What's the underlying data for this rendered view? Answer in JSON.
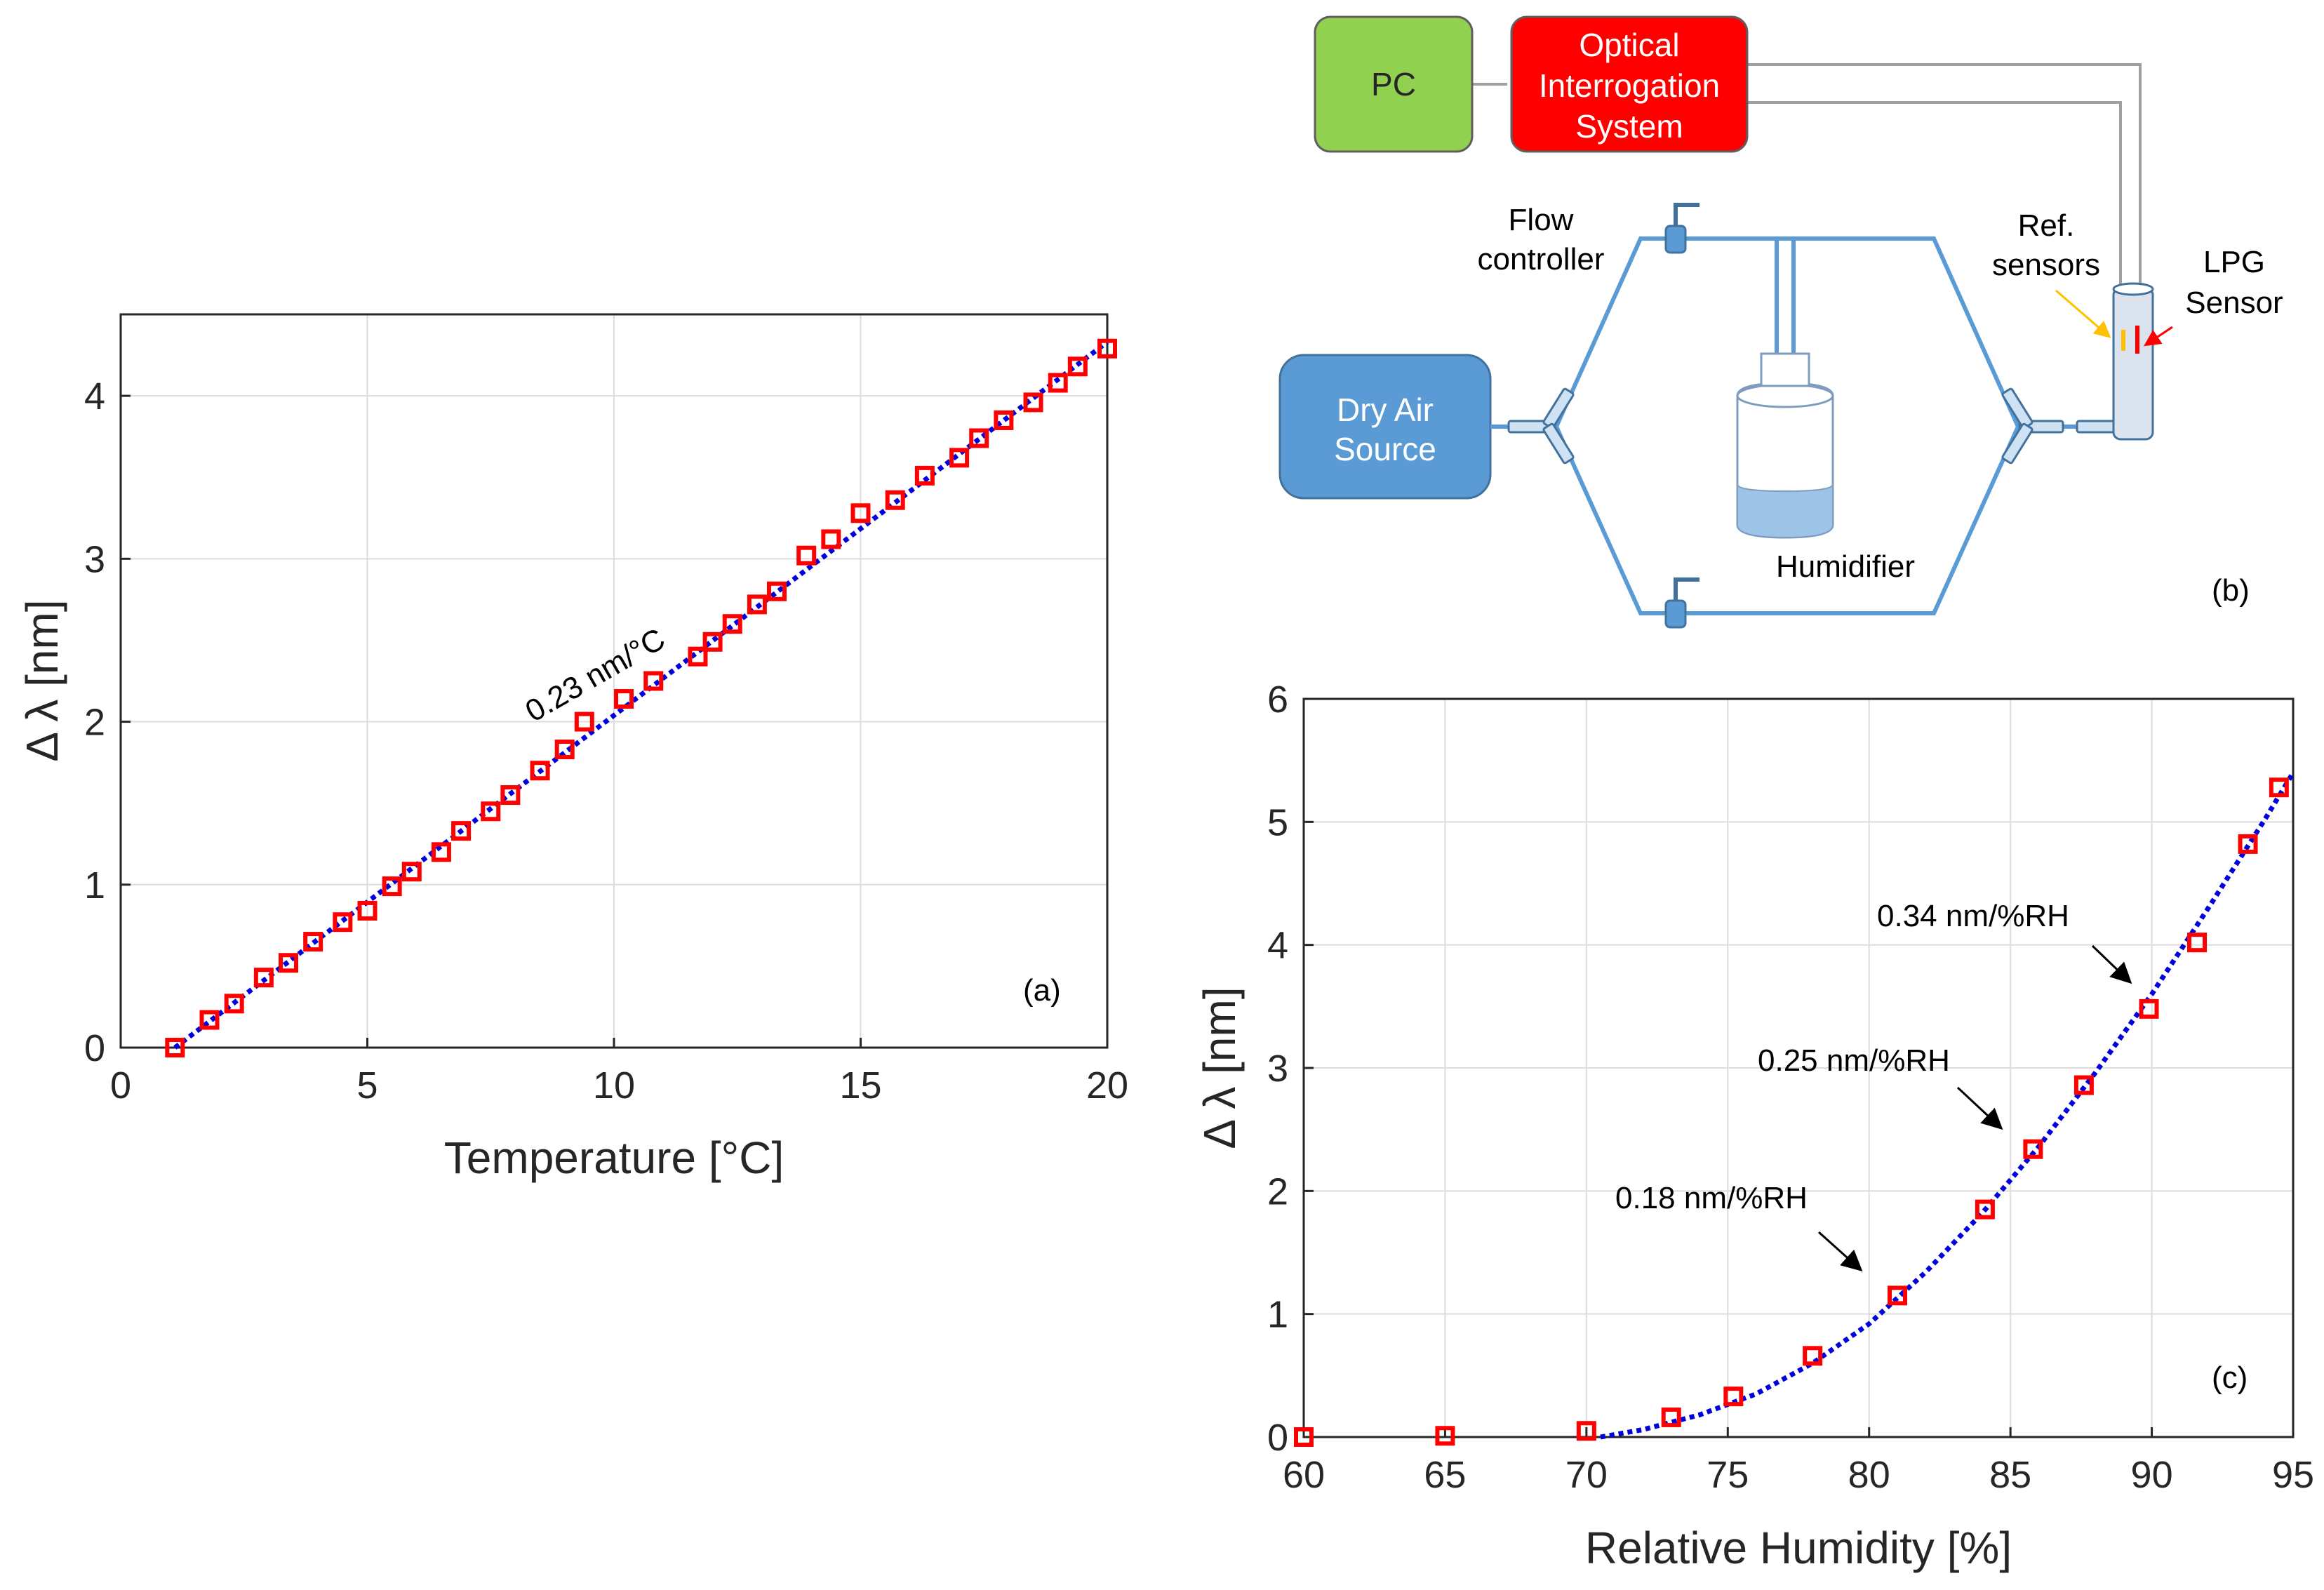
{
  "chart_data": [
    {
      "type": "scatter",
      "panel_label": "(a)",
      "xlabel": "Temperature [°C]",
      "ylabel": "Δ λ [nm]",
      "xlim": [
        0,
        20
      ],
      "ylim": [
        0,
        4.5
      ],
      "xticks": [
        "0",
        "5",
        "10",
        "15",
        "20"
      ],
      "yticks": [
        "0",
        "1",
        "2",
        "3",
        "4"
      ],
      "grid": true,
      "annotation": "0.23 nm/°C",
      "series": [
        {
          "name": "measured",
          "marker": "square",
          "color": "#ff0000",
          "x": [
            1.1,
            1.8,
            2.3,
            2.9,
            3.4,
            3.9,
            4.5,
            5.0,
            5.5,
            5.9,
            6.5,
            6.9,
            7.5,
            7.9,
            8.5,
            9.0,
            9.4,
            10.2,
            10.8,
            11.7,
            12.0,
            12.4,
            12.9,
            13.3,
            13.9,
            14.4,
            15.0,
            15.7,
            16.3,
            17.0,
            17.4,
            17.9,
            18.5,
            19.0,
            19.4,
            20.0
          ],
          "y": [
            0.0,
            0.17,
            0.27,
            0.43,
            0.52,
            0.65,
            0.77,
            0.84,
            0.99,
            1.08,
            1.2,
            1.33,
            1.45,
            1.55,
            1.7,
            1.83,
            2.0,
            2.14,
            2.25,
            2.4,
            2.49,
            2.6,
            2.72,
            2.8,
            3.02,
            3.12,
            3.28,
            3.36,
            3.51,
            3.62,
            3.74,
            3.85,
            3.96,
            4.08,
            4.18,
            4.29
          ]
        },
        {
          "name": "linear fit",
          "style": "dotted",
          "color": "#0000dd",
          "x": [
            1.1,
            20.0
          ],
          "y": [
            0.0,
            4.33
          ]
        }
      ]
    },
    {
      "type": "scatter",
      "panel_label": "(c)",
      "xlabel": "Relative Humidity [%]",
      "ylabel": "Δ λ [nm]",
      "xlim": [
        60,
        95
      ],
      "ylim": [
        0,
        6
      ],
      "xticks": [
        "60",
        "65",
        "70",
        "75",
        "80",
        "85",
        "90",
        "95"
      ],
      "yticks": [
        "0",
        "1",
        "2",
        "3",
        "4",
        "5",
        "6"
      ],
      "grid": true,
      "annotations": [
        "0.34 nm/%RH",
        "0.25 nm/%RH",
        "0.18 nm/%RH"
      ],
      "series": [
        {
          "name": "measured",
          "marker": "square",
          "color": "#ff0000",
          "x": [
            60,
            65,
            70,
            73,
            75.2,
            78,
            81,
            84.1,
            85.8,
            87.6,
            89.9,
            91.6,
            93.4,
            94.5
          ],
          "y": [
            0.0,
            0.01,
            0.05,
            0.16,
            0.33,
            0.66,
            1.15,
            1.85,
            2.34,
            2.86,
            3.48,
            4.02,
            4.82,
            5.28
          ]
        },
        {
          "name": "fit",
          "style": "dotted",
          "color": "#0000dd",
          "x": [
            70.5,
            72,
            74,
            76,
            78,
            80,
            82,
            84,
            86,
            88,
            90,
            92,
            94,
            95
          ],
          "y": [
            0.0,
            0.06,
            0.18,
            0.35,
            0.6,
            0.92,
            1.34,
            1.82,
            2.36,
            2.96,
            3.6,
            4.3,
            5.02,
            5.4
          ]
        }
      ]
    }
  ],
  "diagram": {
    "panel_label": "(b)",
    "pc": "PC",
    "ois": [
      "Optical",
      "Interrogation",
      "System"
    ],
    "flow": [
      "Flow",
      "controller"
    ],
    "ref": [
      "Ref.",
      "sensors"
    ],
    "lpg": [
      "LPG",
      "Sensor"
    ],
    "dry": [
      "Dry Air",
      "Source"
    ],
    "humidifier": "Humidifier",
    "colors": {
      "pc": "#92d050",
      "ois": "#ff0000",
      "dry": "#5b9bd5",
      "pipe": "#5b9bd5",
      "ref_arrow": "#ffc000",
      "lpg_arrow": "#ff0000"
    }
  }
}
